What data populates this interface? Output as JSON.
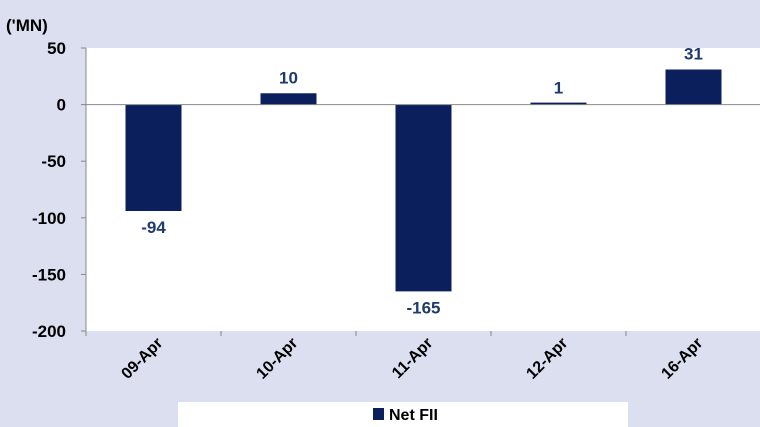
{
  "chart_data": {
    "type": "bar",
    "unit_label": "('MN)",
    "categories": [
      "09-Apr",
      "10-Apr",
      "11-Apr",
      "12-Apr",
      "16-Apr"
    ],
    "series": [
      {
        "name": "Net FII",
        "values": [
          -94,
          10,
          -165,
          1,
          31
        ],
        "color": "#0b1f5c"
      }
    ],
    "data_labels": [
      "-94",
      "10",
      "-165",
      "1",
      "31"
    ],
    "ylim": [
      -200,
      50
    ],
    "yticks": [
      50,
      0,
      -50,
      -100,
      -150,
      -200
    ],
    "grid": false,
    "legend": "bottom",
    "colors": {
      "background": "#dcdff0",
      "plot_background": "#ffffff",
      "bar": "#0b1f5c",
      "data_label": "#1f3a6d"
    }
  }
}
